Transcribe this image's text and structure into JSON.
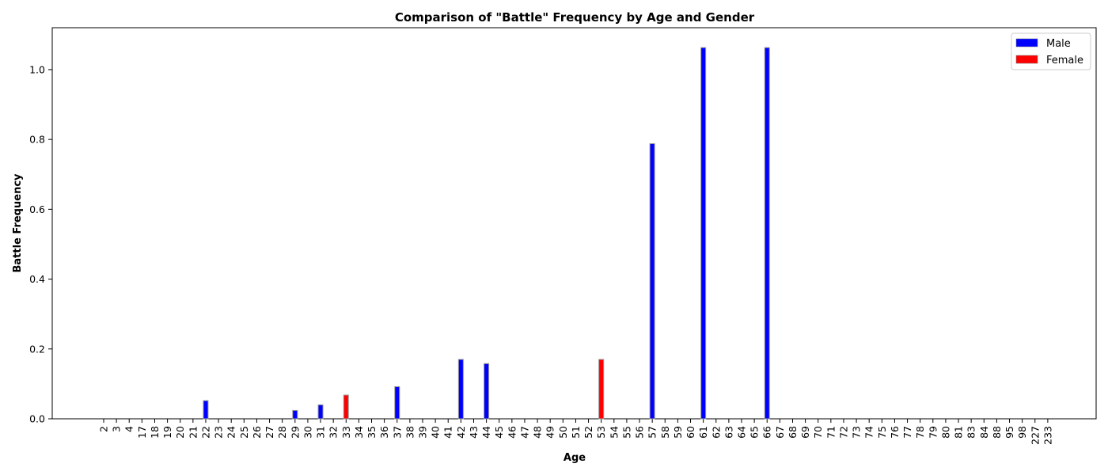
{
  "chart_data": {
    "type": "bar",
    "title": "Comparison of \"Battle\" Frequency by Age and Gender",
    "xlabel": "Age",
    "ylabel": "Battle Frequency",
    "ylim": [
      0,
      1.12
    ],
    "yticks": [
      "0.0",
      "0.2",
      "0.4",
      "0.6",
      "0.8",
      "1.0"
    ],
    "grid": false,
    "legend_position": "top-right",
    "categories": [
      "2",
      "3",
      "4",
      "17",
      "18",
      "19",
      "20",
      "21",
      "22",
      "23",
      "24",
      "25",
      "26",
      "27",
      "28",
      "29",
      "30",
      "31",
      "32",
      "33",
      "34",
      "35",
      "36",
      "37",
      "38",
      "39",
      "40",
      "41",
      "42",
      "43",
      "44",
      "45",
      "46",
      "47",
      "48",
      "49",
      "50",
      "51",
      "52",
      "53",
      "54",
      "55",
      "56",
      "57",
      "58",
      "59",
      "60",
      "61",
      "62",
      "63",
      "64",
      "65",
      "66",
      "67",
      "68",
      "69",
      "70",
      "71",
      "72",
      "73",
      "74",
      "75",
      "76",
      "77",
      "78",
      "79",
      "80",
      "81",
      "83",
      "84",
      "88",
      "95",
      "98",
      "227",
      "233"
    ],
    "series": [
      {
        "name": "Male",
        "color": "#0000ff",
        "values": [
          0,
          0,
          0,
          0,
          0,
          0,
          0,
          0,
          0.052,
          0,
          0,
          0,
          0,
          0,
          0,
          0.024,
          0,
          0.04,
          0,
          0,
          0,
          0,
          0,
          0.092,
          0,
          0,
          0,
          0,
          0.17,
          0,
          0.158,
          0,
          0,
          0,
          0,
          0,
          0,
          0,
          0,
          0,
          0,
          0,
          0,
          0.788,
          0,
          0,
          0,
          1.063,
          0,
          0,
          0,
          0,
          1.063,
          0,
          0,
          0,
          0,
          0,
          0,
          0,
          0,
          0,
          0,
          0,
          0,
          0,
          0,
          0,
          0,
          0,
          0,
          0,
          0,
          0,
          0
        ]
      },
      {
        "name": "Female",
        "color": "#ff0000",
        "values": [
          0,
          0,
          0,
          0,
          0,
          0,
          0,
          0,
          0,
          0,
          0,
          0,
          0,
          0,
          0,
          0,
          0,
          0,
          0,
          0.068,
          0,
          0,
          0,
          0,
          0,
          0,
          0,
          0,
          0,
          0,
          0,
          0,
          0,
          0,
          0,
          0,
          0,
          0,
          0,
          0.17,
          0,
          0,
          0,
          0,
          0,
          0,
          0,
          0,
          0,
          0,
          0,
          0,
          0,
          0,
          0,
          0,
          0,
          0,
          0,
          0,
          0,
          0,
          0,
          0,
          0,
          0,
          0,
          0,
          0,
          0,
          0,
          0,
          0,
          0,
          0
        ]
      }
    ]
  }
}
